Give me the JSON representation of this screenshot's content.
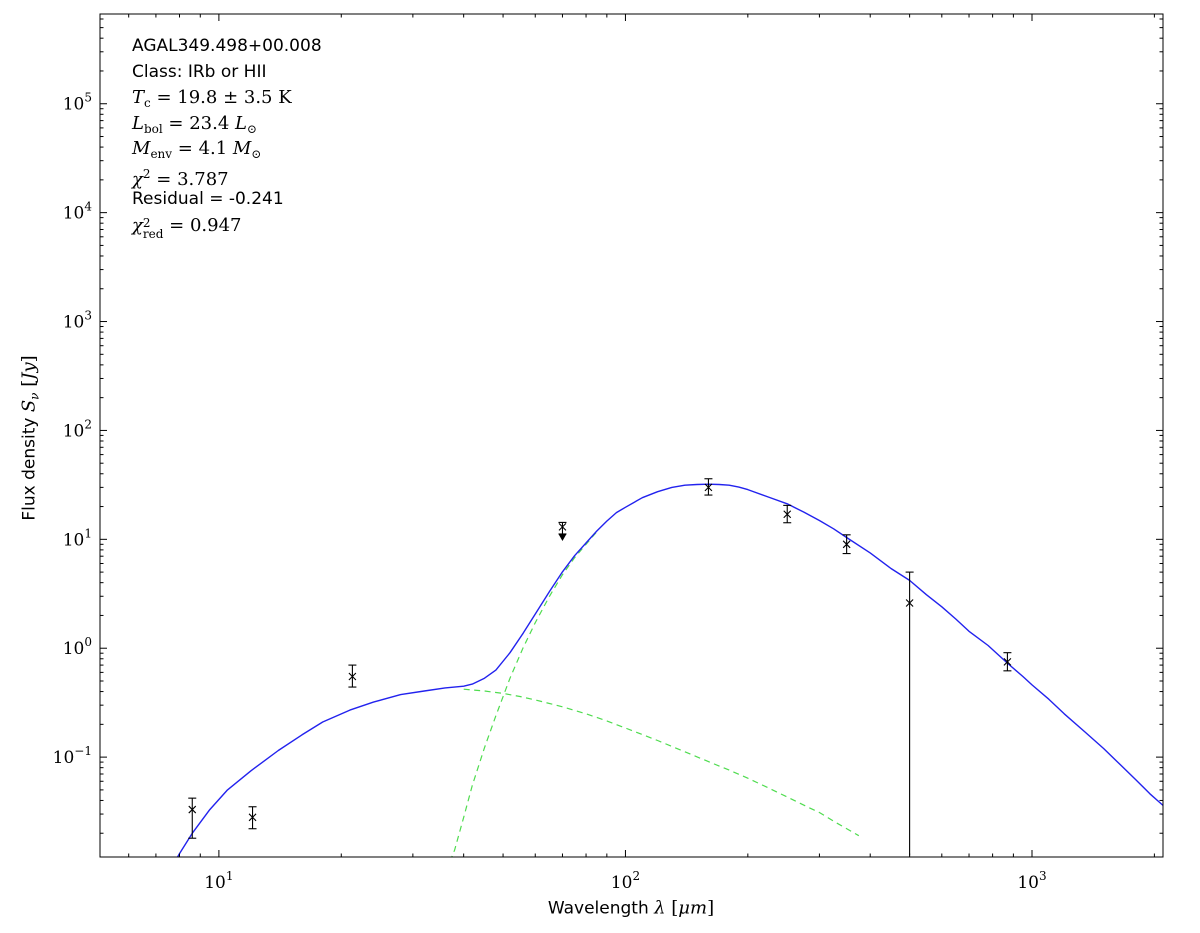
{
  "figure": {
    "bg_color": "#ffffff",
    "annotation_lines": [
      {
        "f": "sans",
        "segs": [
          {
            "t": "AGAL349.498+00.008"
          }
        ]
      },
      {
        "f": "sans",
        "segs": [
          {
            "t": "Class: IRb or HII"
          }
        ]
      },
      {
        "f": "serif",
        "segs": [
          {
            "t": "T",
            "i": 1
          },
          {
            "t": "c",
            "sub": 1
          },
          {
            "t": " = 19.8 ± 3.5 K"
          }
        ]
      },
      {
        "f": "serif",
        "segs": [
          {
            "t": "L",
            "i": 1
          },
          {
            "t": "bol",
            "sub": 1
          },
          {
            "t": " = 23.4 "
          },
          {
            "t": "L",
            "i": 1
          },
          {
            "t": "⊙",
            "sub": 1
          }
        ]
      },
      {
        "f": "serif",
        "segs": [
          {
            "t": "M",
            "i": 1
          },
          {
            "t": "env",
            "sub": 1
          },
          {
            "t": " = 4.1 "
          },
          {
            "t": "M",
            "i": 1
          },
          {
            "t": "⊙",
            "sub": 1
          }
        ]
      },
      {
        "f": "serif",
        "segs": [
          {
            "t": "χ",
            "i": 1
          },
          {
            "t": "2",
            "sup": 1
          },
          {
            "t": " = 3.787"
          }
        ]
      },
      {
        "f": "sans",
        "segs": [
          {
            "t": "Residual = -0.241"
          }
        ]
      },
      {
        "f": "serif",
        "segs": [
          {
            "t": "χ",
            "i": 1
          },
          {
            "stack": {
              "sup": "2",
              "sub": "red"
            }
          },
          {
            "t": " = 0.947"
          }
        ]
      }
    ],
    "fit_parameters": {
      "source": "AGAL349.498+00.008",
      "class": "IRb or HII",
      "T_c": "19.8 ± 3.5 K",
      "L_bol": "23.4 L⊙",
      "M_env": "4.1 M⊙",
      "chi2": 3.787,
      "residual": -0.241,
      "chi2_red": 0.947
    },
    "x_axis_label_segments": [
      {
        "t": "Wavelength ",
        "f": "sans"
      },
      {
        "t": "λ",
        "i": 1,
        "f": "serif"
      },
      {
        "t": " [",
        "f": "serif"
      },
      {
        "t": "μ",
        "i": 1,
        "f": "serif"
      },
      {
        "t": "m",
        "i": 1,
        "f": "serif"
      },
      {
        "t": "]",
        "f": "serif"
      }
    ],
    "y_axis_label_segments": [
      {
        "t": "Flux density ",
        "f": "sans"
      },
      {
        "t": "S",
        "i": 1,
        "f": "serif"
      },
      {
        "t": "ν",
        "i": 1,
        "sub": 1,
        "f": "serif"
      },
      {
        "t": " [",
        "f": "serif"
      },
      {
        "t": "Jy",
        "i": 1,
        "f": "serif"
      },
      {
        "t": "]",
        "f": "serif"
      }
    ]
  },
  "chart_data": {
    "type": "line",
    "title": "",
    "x_scale": "log",
    "y_scale": "log",
    "xlim": [
      5.1,
      2100
    ],
    "ylim": [
      0.0121,
      667000
    ],
    "xlabel": "Wavelength λ [μm]",
    "ylabel": "Flux density Sν [Jy]",
    "grid": false,
    "legend": "none",
    "x_major_ticks": [
      {
        "value": 10,
        "exponent": "1"
      },
      {
        "value": 100,
        "exponent": "2"
      },
      {
        "value": 1000,
        "exponent": "3"
      }
    ],
    "y_major_ticks": [
      {
        "value": 0.1,
        "exponent": "−1"
      },
      {
        "value": 1,
        "exponent": "0"
      },
      {
        "value": 10,
        "exponent": "1"
      },
      {
        "value": 100,
        "exponent": "2"
      },
      {
        "value": 1000,
        "exponent": "3"
      },
      {
        "value": 10000,
        "exponent": "4"
      },
      {
        "value": 100000,
        "exponent": "5"
      }
    ],
    "series": [
      {
        "name": "warm-component",
        "role": "model-component",
        "line": "dashed",
        "color": "#4fdc4f",
        "points": [
          [
            40,
            0.42
          ],
          [
            45,
            0.405
          ],
          [
            50,
            0.385
          ],
          [
            55,
            0.36
          ],
          [
            60,
            0.335
          ],
          [
            70,
            0.29
          ],
          [
            80,
            0.25
          ],
          [
            90,
            0.215
          ],
          [
            100,
            0.185
          ],
          [
            120,
            0.142
          ],
          [
            140,
            0.112
          ],
          [
            160,
            0.091
          ],
          [
            180,
            0.076
          ],
          [
            200,
            0.064
          ],
          [
            225,
            0.052
          ],
          [
            250,
            0.043
          ],
          [
            280,
            0.035
          ],
          [
            300,
            0.031
          ],
          [
            330,
            0.025
          ],
          [
            375,
            0.019
          ]
        ]
      },
      {
        "name": "cold-component",
        "role": "model-component",
        "line": "dashed",
        "color": "#4fdc4f",
        "points": [
          [
            37,
            0.011
          ],
          [
            38,
            0.014
          ],
          [
            40,
            0.028
          ],
          [
            42,
            0.055
          ],
          [
            45,
            0.122
          ],
          [
            48,
            0.24
          ],
          [
            52,
            0.53
          ],
          [
            56,
            1.01
          ],
          [
            60,
            1.72
          ],
          [
            65,
            2.99
          ],
          [
            70,
            4.74
          ],
          [
            75,
            6.78
          ],
          [
            80,
            9.0
          ],
          [
            85,
            11.7
          ]
        ]
      },
      {
        "name": "total-model",
        "role": "model-total",
        "line": "solid",
        "color": "#2222ee",
        "points": [
          [
            7,
            0.005
          ],
          [
            7.5,
            0.0085
          ],
          [
            8,
            0.013
          ],
          [
            8.6,
            0.02
          ],
          [
            9.5,
            0.033
          ],
          [
            10.5,
            0.05
          ],
          [
            12,
            0.075
          ],
          [
            14,
            0.115
          ],
          [
            16,
            0.16
          ],
          [
            18,
            0.21
          ],
          [
            21,
            0.27
          ],
          [
            24,
            0.32
          ],
          [
            28,
            0.375
          ],
          [
            32,
            0.405
          ],
          [
            36,
            0.432
          ],
          [
            40,
            0.448
          ],
          [
            42,
            0.468
          ],
          [
            45,
            0.53
          ],
          [
            48,
            0.63
          ],
          [
            52,
            0.91
          ],
          [
            56,
            1.37
          ],
          [
            60,
            2.06
          ],
          [
            65,
            3.31
          ],
          [
            70,
            5.03
          ],
          [
            75,
            7.07
          ],
          [
            80,
            9.25
          ],
          [
            85,
            11.9
          ],
          [
            90,
            14.7
          ],
          [
            95,
            17.6
          ],
          [
            100,
            19.7
          ],
          [
            110,
            24.1
          ],
          [
            120,
            27.4
          ],
          [
            130,
            30.0
          ],
          [
            140,
            31.4
          ],
          [
            150,
            31.9
          ],
          [
            160,
            32.1
          ],
          [
            170,
            31.9
          ],
          [
            180,
            31.4
          ],
          [
            190,
            30.2
          ],
          [
            200,
            28.6
          ],
          [
            225,
            24.4
          ],
          [
            250,
            21.2
          ],
          [
            275,
            17.7
          ],
          [
            300,
            14.9
          ],
          [
            325,
            12.5
          ],
          [
            350,
            10.4
          ],
          [
            400,
            7.5
          ],
          [
            450,
            5.4
          ],
          [
            500,
            4.2
          ],
          [
            550,
            3.1
          ],
          [
            600,
            2.4
          ],
          [
            650,
            1.85
          ],
          [
            700,
            1.43
          ],
          [
            780,
            1.06
          ],
          [
            870,
            0.73
          ],
          [
            950,
            0.55
          ],
          [
            1000,
            0.46
          ],
          [
            1100,
            0.34
          ],
          [
            1200,
            0.25
          ],
          [
            1350,
            0.17
          ],
          [
            1500,
            0.12
          ],
          [
            1650,
            0.085
          ],
          [
            1800,
            0.062
          ],
          [
            1950,
            0.046
          ],
          [
            2100,
            0.036
          ],
          [
            2200,
            0.031
          ]
        ]
      }
    ],
    "data_points": {
      "color": "#000000",
      "marker": "x",
      "points": [
        {
          "x": 8.6,
          "y": 0.033,
          "lo": 0.018,
          "hi": 0.042
        },
        {
          "x": 12.1,
          "y": 0.028,
          "lo": 0.022,
          "hi": 0.035
        },
        {
          "x": 21.3,
          "y": 0.55,
          "lo": 0.44,
          "hi": 0.7
        },
        {
          "x": 70,
          "y": 13.0,
          "lo": 11.2,
          "hi": 14.3,
          "limit": "upper"
        },
        {
          "x": 160,
          "y": 30.0,
          "lo": 25.5,
          "hi": 36.0
        },
        {
          "x": 250,
          "y": 17.0,
          "lo": 14.2,
          "hi": 20.5
        },
        {
          "x": 350,
          "y": 9.0,
          "lo": 7.4,
          "hi": 11.0
        },
        {
          "x": 500,
          "y": 2.6,
          "lo": 0.0125,
          "hi": 5.0,
          "lo_cap": false
        },
        {
          "x": 870,
          "y": 0.75,
          "lo": 0.62,
          "hi": 0.91
        }
      ]
    }
  }
}
